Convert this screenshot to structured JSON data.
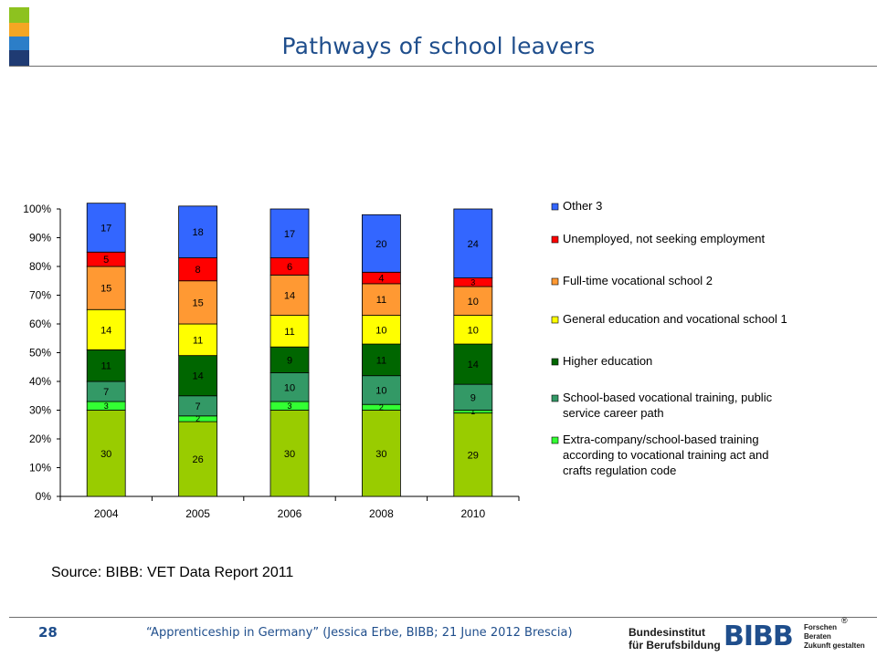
{
  "slide": {
    "title": "Pathways of school leavers",
    "source": "Source: BIBB: VET Data Report 2011",
    "page_number": "28",
    "footer": "“Apprenticeship in Germany” (Jessica Erbe, BIBB; 21 June 2012 Brescia)",
    "registered_mark": "®",
    "logo": {
      "org_line1": "Bundesinstitut",
      "org_line2": "für Berufsbildung",
      "mark": "BIBB",
      "tagline_line1": "Forschen",
      "tagline_line2": "Beraten",
      "tagline_line3": "Zukunft gestalten"
    },
    "corner_colors": [
      "#8dc21f",
      "#f5a623",
      "#2c7ec8",
      "#1f3b73"
    ]
  },
  "chart_data": {
    "type": "bar",
    "stacked": true,
    "percent": true,
    "categories": [
      "2004",
      "2005",
      "2006",
      "2008",
      "2010"
    ],
    "y_ticks": [
      "0%",
      "10%",
      "20%",
      "30%",
      "40%",
      "50%",
      "60%",
      "70%",
      "80%",
      "90%",
      "100%"
    ],
    "ylim": [
      0,
      100
    ],
    "legend_position": "right",
    "series": [
      {
        "key": "s1",
        "values": [
          30,
          26,
          30,
          30,
          29
        ],
        "labels": [
          "30",
          "26",
          "30",
          "30",
          "29"
        ],
        "color": "#99cc00",
        "label_color": "#000000"
      },
      {
        "name": "Extra-company/school-based training according to vocational training act and crafts regulation code",
        "values": [
          3,
          2,
          3,
          2,
          1
        ],
        "labels": [
          "3",
          "2",
          "3",
          "2",
          "1"
        ],
        "color": "#33ff33",
        "label_color": "#000000"
      },
      {
        "name": "School-based vocational training, public service career path",
        "values": [
          7,
          7,
          10,
          10,
          9
        ],
        "labels": [
          "7",
          "7",
          "10",
          "10",
          "9"
        ],
        "color": "#339966",
        "label_color": "#000000"
      },
      {
        "name": "Higher education",
        "values": [
          11,
          14,
          9,
          11,
          14
        ],
        "labels": [
          "11",
          "14",
          "9",
          "11",
          "14"
        ],
        "color": "#006600",
        "label_color": "#000000"
      },
      {
        "name": "General education and vocational school 1",
        "values": [
          14,
          11,
          11,
          10,
          10
        ],
        "labels": [
          "14",
          "11",
          "11",
          "10",
          "10"
        ],
        "color": "#ffff00",
        "label_color": "#000000"
      },
      {
        "name": "Full-time vocational school 2",
        "values": [
          15,
          15,
          14,
          11,
          10
        ],
        "labels": [
          "15",
          "15",
          "14",
          "11",
          "10"
        ],
        "color": "#ff9933",
        "label_color": "#000000"
      },
      {
        "name": "Unemployed, not seeking employment",
        "values": [
          5,
          8,
          6,
          4,
          3
        ],
        "labels": [
          "5",
          "8",
          "6",
          "4",
          "3"
        ],
        "color": "#ff0000",
        "label_color": "#000000"
      },
      {
        "name": "Other 3",
        "values": [
          17,
          18,
          17,
          20,
          24
        ],
        "labels": [
          "17",
          "18",
          "17",
          "20",
          "24"
        ],
        "color": "#3366ff",
        "label_color": "#000000"
      }
    ],
    "legend": [
      {
        "text": "Other 3",
        "color": "#3366ff"
      },
      {
        "text": "Unemployed, not seeking employment",
        "color": "#ff0000"
      },
      {
        "text": "Full-time vocational school 2",
        "color": "#ff9933"
      },
      {
        "text": "General education and vocational school 1",
        "color": "#ffff00"
      },
      {
        "text": "Higher education",
        "color": "#006600"
      },
      {
        "text": "School-based vocational training, public service career path",
        "color": "#339966"
      },
      {
        "text": "Extra-company/school-based training according to vocational training act and crafts regulation code",
        "color": "#33ff33"
      }
    ]
  }
}
